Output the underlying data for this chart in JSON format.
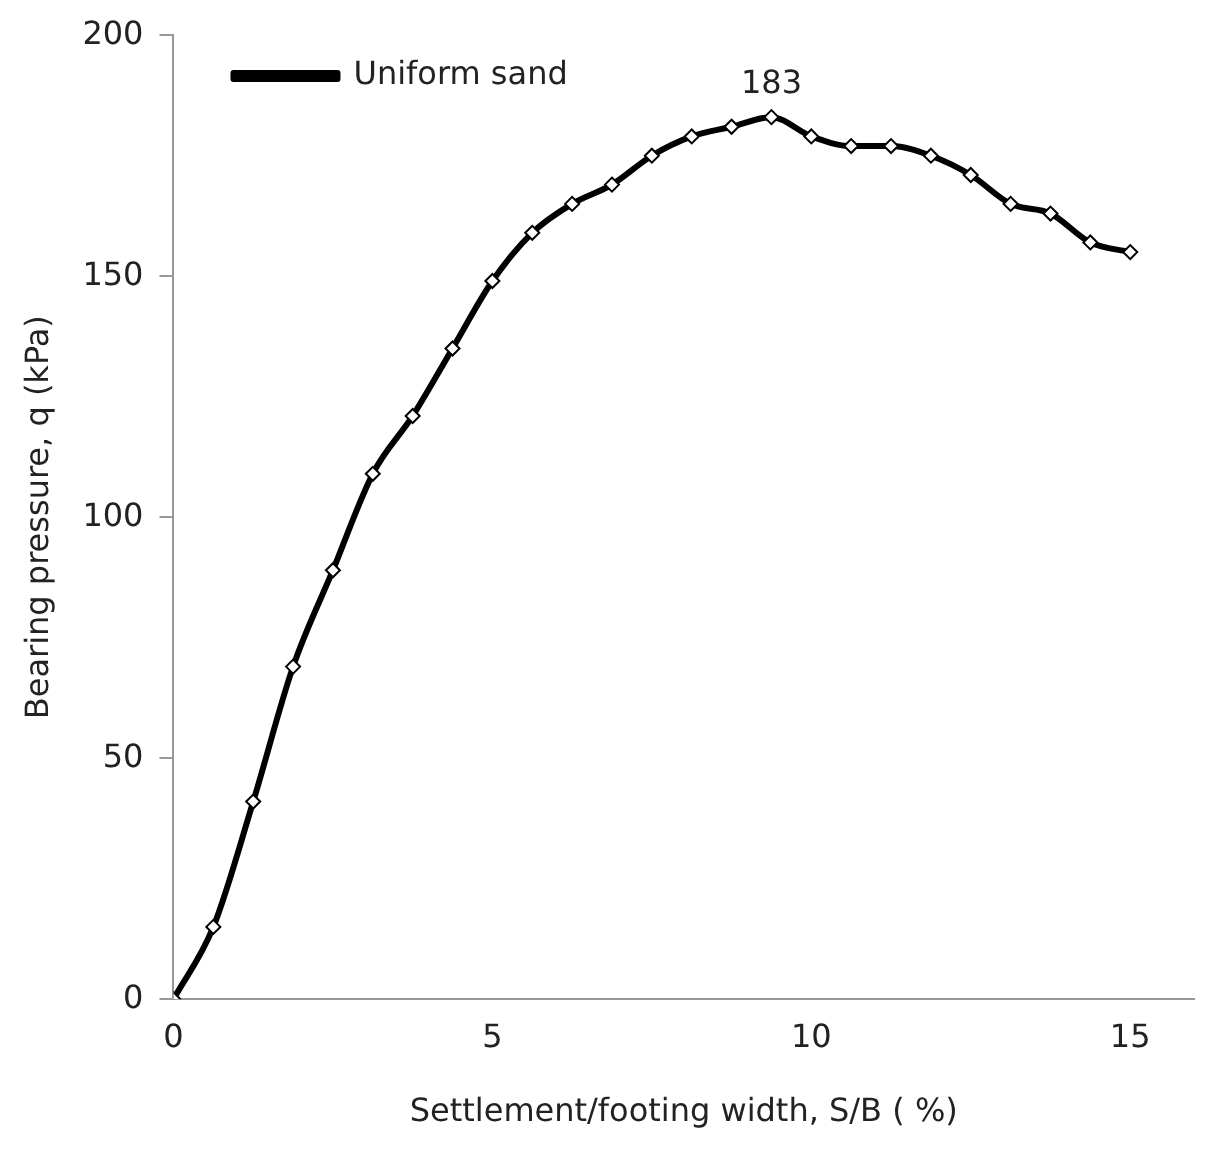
{
  "chart_data": {
    "type": "line",
    "xlabel": "Settlement/footing width, S/B ( %)",
    "ylabel": "Bearing pressure, q (kPa)",
    "x": [
      0,
      0.625,
      1.25,
      1.875,
      2.5,
      3.125,
      3.75,
      4.375,
      5,
      5.625,
      6.25,
      6.875,
      7.5,
      8.125,
      8.75,
      9.375,
      10,
      10.625,
      11.25,
      11.875,
      12.5,
      13.125,
      13.75,
      14.375,
      15
    ],
    "series": [
      {
        "name": "Uniform sand",
        "color": "#000000",
        "values": [
          0,
          15,
          41,
          69,
          89,
          109,
          121,
          135,
          149,
          159,
          165,
          169,
          175,
          179,
          181,
          183,
          179,
          177,
          177,
          175,
          171,
          165,
          163,
          157,
          155
        ]
      }
    ],
    "xlim": [
      0,
      16
    ],
    "xticks": [
      0,
      5,
      10,
      15
    ],
    "ylim": [
      0,
      200
    ],
    "yticks": [
      0,
      50,
      100,
      150,
      200
    ],
    "annotations": [
      {
        "text": "183",
        "x": 9.375,
        "y": 183
      }
    ],
    "grid": false,
    "legend": "top left",
    "marker": "diamond",
    "line_style": "solid"
  }
}
